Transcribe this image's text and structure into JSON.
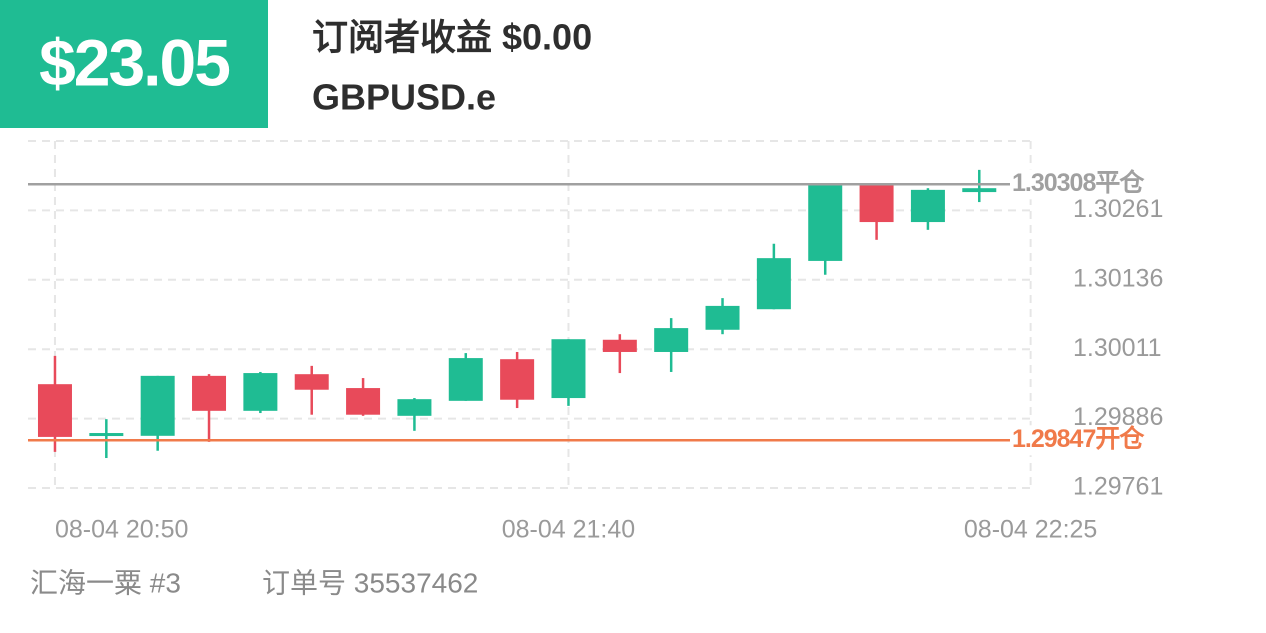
{
  "header": {
    "profit": "$23.05",
    "subscriber_profit": "订阅者收益 $0.00",
    "symbol": "GBPUSD.e"
  },
  "chart_data": {
    "type": "candlestick",
    "categories": [
      "08-04 20:50",
      null,
      null,
      null,
      null,
      null,
      null,
      null,
      null,
      null,
      "08-04 21:40",
      null,
      null,
      null,
      null,
      null,
      null,
      null,
      null,
      "08-04 22:25"
    ],
    "open": [
      1.29948,
      1.29857,
      1.29855,
      1.29963,
      1.299,
      1.29966,
      1.29941,
      1.29891,
      1.29918,
      1.29993,
      1.29923,
      1.30028,
      1.30006,
      1.30046,
      1.30083,
      1.3017,
      1.30307,
      1.3024,
      1.30294,
      null
    ],
    "high": [
      1.29999,
      1.29885,
      1.29963,
      1.29966,
      1.2997,
      1.29981,
      1.29959,
      1.29923,
      1.30004,
      1.30006,
      1.30029,
      1.30038,
      1.30067,
      1.30103,
      1.30201,
      1.30308,
      1.3031,
      1.30301,
      1.30334,
      null
    ],
    "low": [
      1.29826,
      1.29815,
      1.29828,
      1.29844,
      1.29896,
      1.29893,
      1.29891,
      1.29864,
      1.29918,
      1.29905,
      1.29909,
      1.29968,
      1.2997,
      1.30038,
      1.30083,
      1.30145,
      1.30208,
      1.30226,
      1.30276,
      null
    ],
    "close": [
      1.29853,
      1.2986,
      1.29963,
      1.299,
      1.29968,
      1.29938,
      1.29893,
      1.29921,
      1.29995,
      1.2992,
      1.30029,
      1.30006,
      1.30049,
      1.30089,
      1.30175,
      1.30308,
      1.3024,
      1.30298,
      1.30301,
      null
    ],
    "up_color": "#1fbc93",
    "down_color": "#e84a5a",
    "ylim": [
      1.29761,
      1.30386
    ],
    "yticks": [
      1.29761,
      1.29886,
      1.30011,
      1.30136,
      1.30261
    ],
    "grid": true,
    "close_line": {
      "value": 1.30308,
      "label": "1.30308平仓",
      "color": "#a0a0a0"
    },
    "open_line": {
      "value": 1.29847,
      "label": "1.29847开仓",
      "color": "#f07a4a"
    }
  },
  "footer": {
    "account": "汇海一粟 #3",
    "order": "订单号 35537462"
  }
}
